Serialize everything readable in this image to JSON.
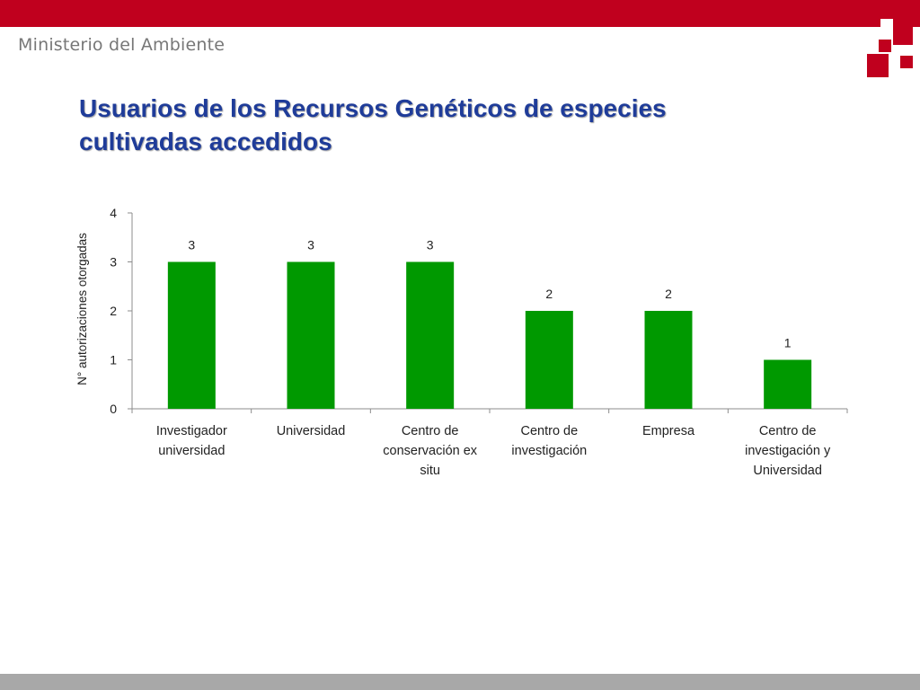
{
  "header": {
    "ministry": "Ministerio del Ambiente",
    "bar_color": "#c0001e",
    "logo_icon": "ministry-logo-icon"
  },
  "title": "Usuarios de los Recursos Genéticos de especies cultivadas accedidos",
  "footer": {
    "bar_color": "#a8a8a8"
  },
  "chart_data": {
    "type": "bar",
    "categories": [
      [
        "Investigador",
        "universidad"
      ],
      [
        "Universidad"
      ],
      [
        "Centro de",
        "conservación ex",
        "situ"
      ],
      [
        "Centro de",
        "investigación"
      ],
      [
        "Empresa"
      ],
      [
        "Centro de",
        "investigación y",
        "Universidad"
      ]
    ],
    "values": [
      3,
      3,
      3,
      2,
      2,
      1
    ],
    "data_labels": [
      "3",
      "3",
      "3",
      "2",
      "2",
      "1"
    ],
    "ylabel": "N° autorizaciones otorgadas",
    "ylim": [
      0,
      4
    ],
    "yticks": [
      "0",
      "1",
      "2",
      "3",
      "4"
    ],
    "bar_color": "#009900",
    "grid": false,
    "legend": "none"
  }
}
